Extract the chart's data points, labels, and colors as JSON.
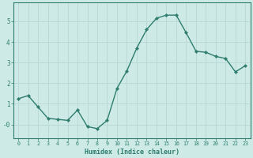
{
  "x": [
    0,
    1,
    2,
    3,
    4,
    5,
    6,
    7,
    8,
    9,
    10,
    11,
    12,
    13,
    14,
    15,
    16,
    17,
    18,
    19,
    20,
    21,
    22,
    23
  ],
  "y": [
    1.25,
    1.4,
    0.85,
    0.3,
    0.25,
    0.2,
    0.7,
    -0.1,
    -0.2,
    0.2,
    1.75,
    2.6,
    3.7,
    4.6,
    5.15,
    5.3,
    5.3,
    4.45,
    3.55,
    3.5,
    3.3,
    3.2,
    2.55,
    2.85
  ],
  "line_color": "#2e7d6e",
  "marker": "D",
  "marker_size": 2.2,
  "bg_color": "#ceeae7",
  "grid_color": "#b8d8d5",
  "xlabel": "Humidex (Indice chaleur)",
  "xlim": [
    -0.5,
    23.5
  ],
  "ylim": [
    -0.65,
    5.9
  ],
  "yticks": [
    0,
    1,
    2,
    3,
    4,
    5
  ],
  "ytick_labels": [
    "-0",
    "1",
    "2",
    "3",
    "4",
    "5"
  ],
  "xticks": [
    0,
    1,
    2,
    3,
    4,
    5,
    6,
    7,
    8,
    9,
    10,
    11,
    12,
    13,
    14,
    15,
    16,
    17,
    18,
    19,
    20,
    21,
    22,
    23
  ],
  "spine_color": "#2e7d6e",
  "tick_color": "#2e7d6e",
  "label_color": "#2e7d6e",
  "linewidth": 1.0
}
